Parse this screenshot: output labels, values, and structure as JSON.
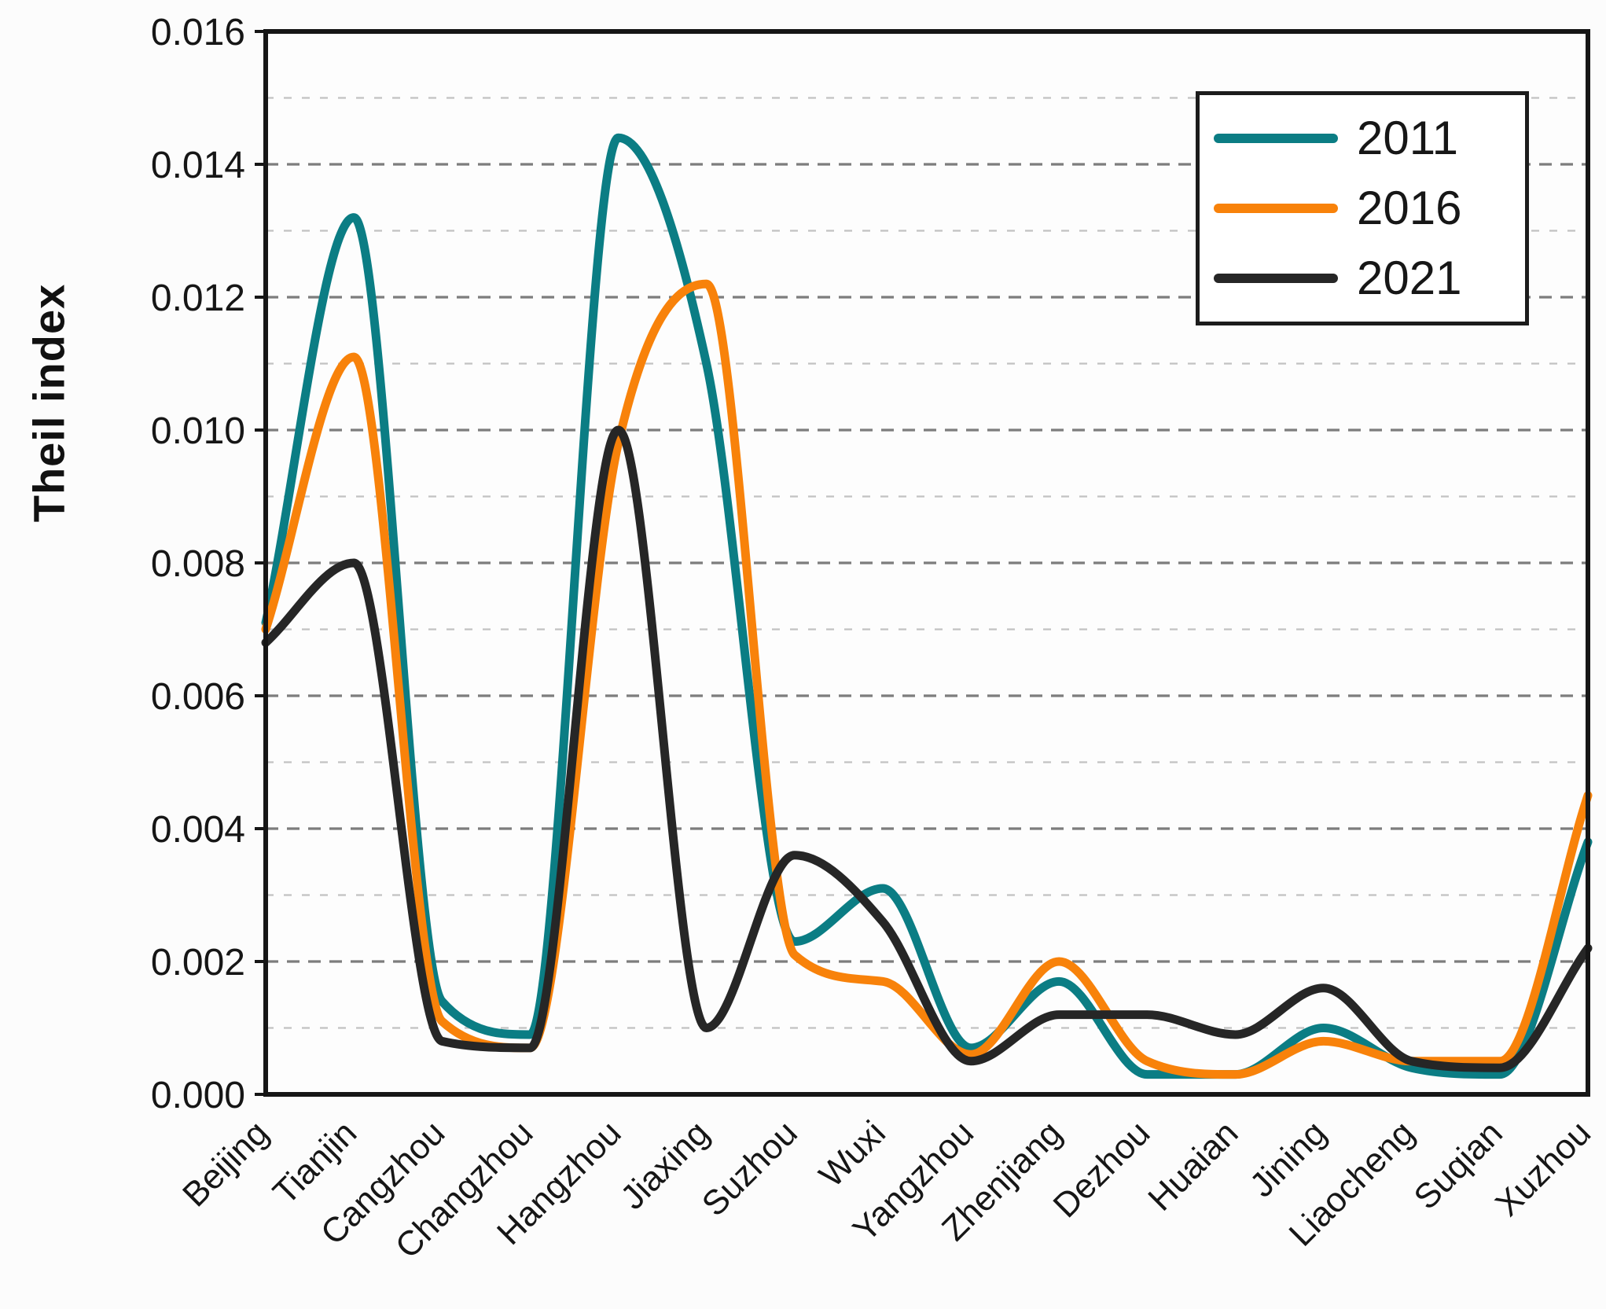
{
  "chart_data": {
    "type": "line",
    "title": "",
    "xlabel": "",
    "ylabel": "Theil index",
    "ylim": [
      0,
      0.016
    ],
    "y_tick_step": 0.002,
    "y_minor_grid_step": 0.001,
    "grid": "dashed horizontal",
    "legend_position": "top-right",
    "categories": [
      "Beijing",
      "Tianjin",
      "Cangzhou",
      "Changzhou",
      "Hangzhou",
      "Jiaxing",
      "Suzhou",
      "Wuxi",
      "Yangzhou",
      "Zhenjiang",
      "Dezhou",
      "Huaian",
      "Jining",
      "Liaocheng",
      "Suqian",
      "Xuzhou"
    ],
    "series": [
      {
        "name": "2011",
        "color": "#0b7d84",
        "values": [
          0.0071,
          0.0132,
          0.0014,
          0.0009,
          0.0144,
          0.011,
          0.0023,
          0.0031,
          0.0007,
          0.0017,
          0.0003,
          0.0003,
          0.001,
          0.0004,
          0.0003,
          0.0038
        ]
      },
      {
        "name": "2016",
        "color": "#f8820a",
        "values": [
          0.007,
          0.0111,
          0.0011,
          0.0007,
          0.0098,
          0.0122,
          0.0021,
          0.0017,
          0.0006,
          0.002,
          0.0005,
          0.0003,
          0.0008,
          0.0005,
          0.0005,
          0.0045
        ]
      },
      {
        "name": "2021",
        "color": "#262626",
        "values": [
          0.0068,
          0.008,
          0.0008,
          0.0007,
          0.01,
          0.001,
          0.0036,
          0.0026,
          0.0005,
          0.0012,
          0.0012,
          0.0009,
          0.0016,
          0.0005,
          0.0004,
          0.0022
        ]
      }
    ],
    "y_tick_labels": [
      "0.000",
      "0.002",
      "0.004",
      "0.006",
      "0.008",
      "0.010",
      "0.012",
      "0.014",
      "0.016"
    ]
  },
  "axes": {
    "y_title": "Theil index"
  },
  "legend": {
    "items": [
      {
        "label": "2011",
        "color": "#0b7d84"
      },
      {
        "label": "2016",
        "color": "#f8820a"
      },
      {
        "label": "2021",
        "color": "#262626"
      }
    ]
  },
  "style": {
    "grid_major_color": "#7d7d7d",
    "grid_minor_color": "#c2c2c2",
    "frame_color": "#161616",
    "label_color": "#161616",
    "plot_bg": "#fdfdfd"
  }
}
